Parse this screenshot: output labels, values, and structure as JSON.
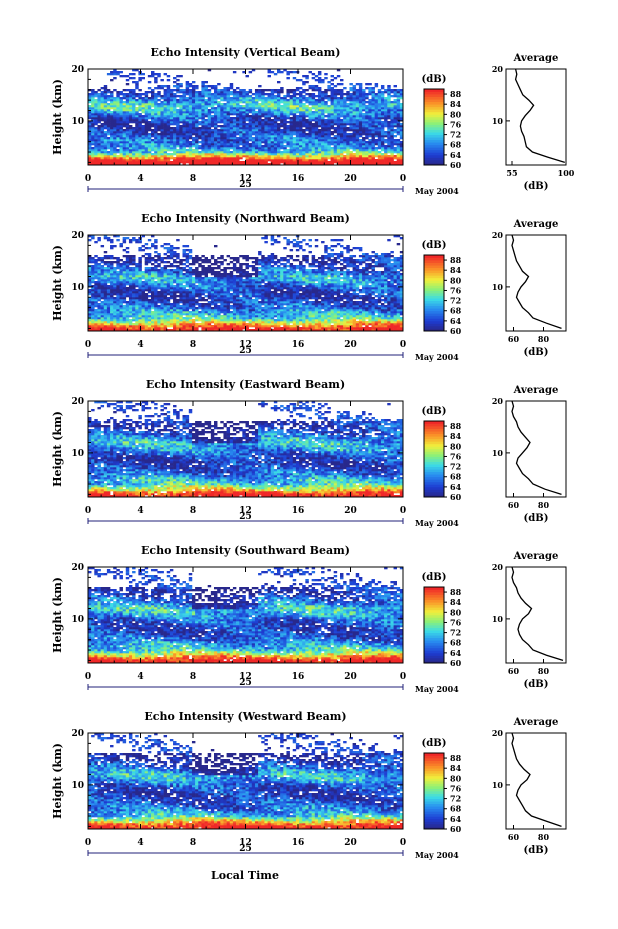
{
  "figure": {
    "xlabel": "Local Time",
    "date_label": "May 2004",
    "day_label": "25",
    "cbar_unit": "(dB)",
    "avg_xlabel": "(dB)"
  },
  "chart_data": [
    {
      "type": "heatmap",
      "title": "Echo Intensity (Vertical Beam)",
      "xlabel": "",
      "ylabel": "Height (km)",
      "x_ticks": [
        "0",
        "4",
        "8",
        "12",
        "16",
        "20",
        "0"
      ],
      "y_ticks": [
        "10",
        "20"
      ],
      "xlim": [
        0,
        24
      ],
      "ylim": [
        1.5,
        20
      ],
      "colorbar": {
        "label": "(dB)",
        "ticks": [
          "60",
          "64",
          "68",
          "72",
          "76",
          "80",
          "84",
          "88"
        ],
        "range": [
          60,
          90
        ]
      },
      "profile": {
        "title": "Average",
        "xlabel": "(dB)",
        "x_ticks": [
          "55",
          "100"
        ],
        "xlim": [
          50,
          100
        ],
        "height": [
          2,
          3,
          4,
          5,
          6,
          7,
          8,
          9,
          10,
          11,
          12,
          13,
          14,
          15,
          16,
          17,
          18,
          19,
          20
        ],
        "value": [
          99,
          85,
          72,
          67,
          66,
          65,
          63,
          62,
          63,
          66,
          70,
          73,
          69,
          64,
          62,
          60,
          58,
          59,
          58
        ]
      }
    },
    {
      "type": "heatmap",
      "title": "Echo Intensity (Northward Beam)",
      "xlabel": "",
      "ylabel": "Height (km)",
      "x_ticks": [
        "0",
        "4",
        "8",
        "12",
        "16",
        "20",
        "0"
      ],
      "y_ticks": [
        "10",
        "20"
      ],
      "xlim": [
        0,
        24
      ],
      "ylim": [
        1.5,
        20
      ],
      "colorbar": {
        "label": "(dB)",
        "ticks": [
          "60",
          "64",
          "68",
          "72",
          "76",
          "80",
          "84",
          "88"
        ],
        "range": [
          60,
          90
        ]
      },
      "profile": {
        "title": "Average",
        "xlabel": "(dB)",
        "x_ticks": [
          "60",
          "80"
        ],
        "xlim": [
          55,
          95
        ],
        "height": [
          2,
          3,
          4,
          5,
          6,
          7,
          8,
          9,
          10,
          11,
          12,
          13,
          14,
          15,
          16,
          17,
          18,
          19,
          20
        ],
        "value": [
          92,
          82,
          73,
          70,
          66,
          64,
          62,
          63,
          65,
          68,
          70,
          66,
          64,
          62,
          61,
          60,
          59,
          60,
          59
        ]
      }
    },
    {
      "type": "heatmap",
      "title": "Echo Intensity (Eastward Beam)",
      "xlabel": "",
      "ylabel": "Height (km)",
      "x_ticks": [
        "0",
        "4",
        "8",
        "12",
        "16",
        "20",
        "0"
      ],
      "y_ticks": [
        "10",
        "20"
      ],
      "xlim": [
        0,
        24
      ],
      "ylim": [
        1.5,
        20
      ],
      "colorbar": {
        "label": "(dB)",
        "ticks": [
          "60",
          "64",
          "68",
          "72",
          "76",
          "80",
          "84",
          "88"
        ],
        "range": [
          60,
          90
        ]
      },
      "profile": {
        "title": "Average",
        "xlabel": "(dB)",
        "x_ticks": [
          "60",
          "80"
        ],
        "xlim": [
          55,
          95
        ],
        "height": [
          2,
          3,
          4,
          5,
          6,
          7,
          8,
          9,
          10,
          11,
          12,
          13,
          14,
          15,
          16,
          17,
          18,
          19,
          20
        ],
        "value": [
          92,
          81,
          73,
          70,
          66,
          64,
          62,
          63,
          66,
          69,
          71,
          68,
          65,
          63,
          62,
          60,
          59,
          60,
          59
        ]
      }
    },
    {
      "type": "heatmap",
      "title": "Echo Intensity (Southward Beam)",
      "xlabel": "",
      "ylabel": "Height (km)",
      "x_ticks": [
        "0",
        "4",
        "8",
        "12",
        "16",
        "20",
        "0"
      ],
      "y_ticks": [
        "10",
        "20"
      ],
      "xlim": [
        0,
        24
      ],
      "ylim": [
        1.5,
        20
      ],
      "colorbar": {
        "label": "(dB)",
        "ticks": [
          "60",
          "64",
          "68",
          "72",
          "76",
          "80",
          "84",
          "88"
        ],
        "range": [
          60,
          90
        ]
      },
      "profile": {
        "title": "Average",
        "xlabel": "(dB)",
        "x_ticks": [
          "60",
          "80"
        ],
        "xlim": [
          55,
          95
        ],
        "height": [
          2,
          3,
          4,
          5,
          6,
          7,
          8,
          9,
          10,
          11,
          12,
          13,
          14,
          15,
          16,
          17,
          18,
          19,
          20
        ],
        "value": [
          93,
          82,
          73,
          70,
          66,
          64,
          63,
          64,
          66,
          70,
          72,
          68,
          65,
          63,
          62,
          60,
          59,
          60,
          59
        ]
      }
    },
    {
      "type": "heatmap",
      "title": "Echo Intensity (Westward Beam)",
      "xlabel": "Local Time",
      "ylabel": "Height (km)",
      "x_ticks": [
        "0",
        "4",
        "8",
        "12",
        "16",
        "20",
        "0"
      ],
      "y_ticks": [
        "10",
        "20"
      ],
      "xlim": [
        0,
        24
      ],
      "ylim": [
        1.5,
        20
      ],
      "colorbar": {
        "label": "(dB)",
        "ticks": [
          "60",
          "64",
          "68",
          "72",
          "76",
          "80",
          "84",
          "88"
        ],
        "range": [
          60,
          90
        ]
      },
      "profile": {
        "title": "Average",
        "xlabel": "(dB)",
        "x_ticks": [
          "60",
          "80"
        ],
        "xlim": [
          55,
          95
        ],
        "height": [
          2,
          3,
          4,
          5,
          6,
          7,
          8,
          9,
          10,
          11,
          12,
          13,
          14,
          15,
          16,
          17,
          18,
          19,
          20
        ],
        "value": [
          92,
          82,
          72,
          68,
          66,
          64,
          62,
          63,
          65,
          69,
          71,
          67,
          64,
          62,
          61,
          60,
          59,
          60,
          59
        ]
      }
    }
  ]
}
